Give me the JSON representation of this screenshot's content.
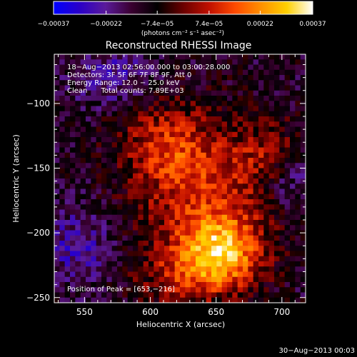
{
  "chart_data": {
    "type": "heatmap",
    "title": "Reconstructed RHESSI Image",
    "xlabel": "Heliocentric X (arcsec)",
    "ylabel": "Heliocentric Y (arcsec)",
    "xlim": [
      527,
      718
    ],
    "ylim": [
      -254,
      -62
    ],
    "xticks": [
      550,
      600,
      650,
      700
    ],
    "yticks": [
      -100,
      -150,
      -200,
      -250
    ],
    "xtick_labels": [
      "550",
      "600",
      "650",
      "700"
    ],
    "ytick_labels": [
      "−100",
      "−150",
      "−200",
      "−250"
    ],
    "colorbar": {
      "range": [
        -0.00037,
        0.00037
      ],
      "tick_values": [
        -0.00037,
        -0.00022,
        -7.4e-05,
        7.4e-05,
        0.00022,
        0.00037
      ],
      "tick_labels": [
        "−0.00037",
        "−0.00022",
        "−7.4e−05",
        "7.4e−05",
        "0.00022",
        "0.00037"
      ],
      "unit_label": "(photons cm⁻² s⁻¹ asec⁻²)",
      "stops": [
        "#0000ff",
        "#2a00c8",
        "#5a1a9a",
        "#3a0030",
        "#000000",
        "#6a0000",
        "#c01000",
        "#ff4a00",
        "#ff9000",
        "#ffd000",
        "#ffffff"
      ]
    },
    "annotations": [
      "18−Aug−2013 02:56:00.000 to 03:00:28.000",
      "Detectors: 3F 5F 6F 7F 8F 9F, Att 0",
      "Energy Range: 12.0 − 25.0 keV",
      "Clean      Total counts: 7.89E+03"
    ],
    "peak_label": "Position of Peak = [653,−216]",
    "peak": [
      653,
      -216
    ],
    "grid": false,
    "legend": "none"
  },
  "footer": {
    "date": "30−Aug−2013 00:03"
  }
}
